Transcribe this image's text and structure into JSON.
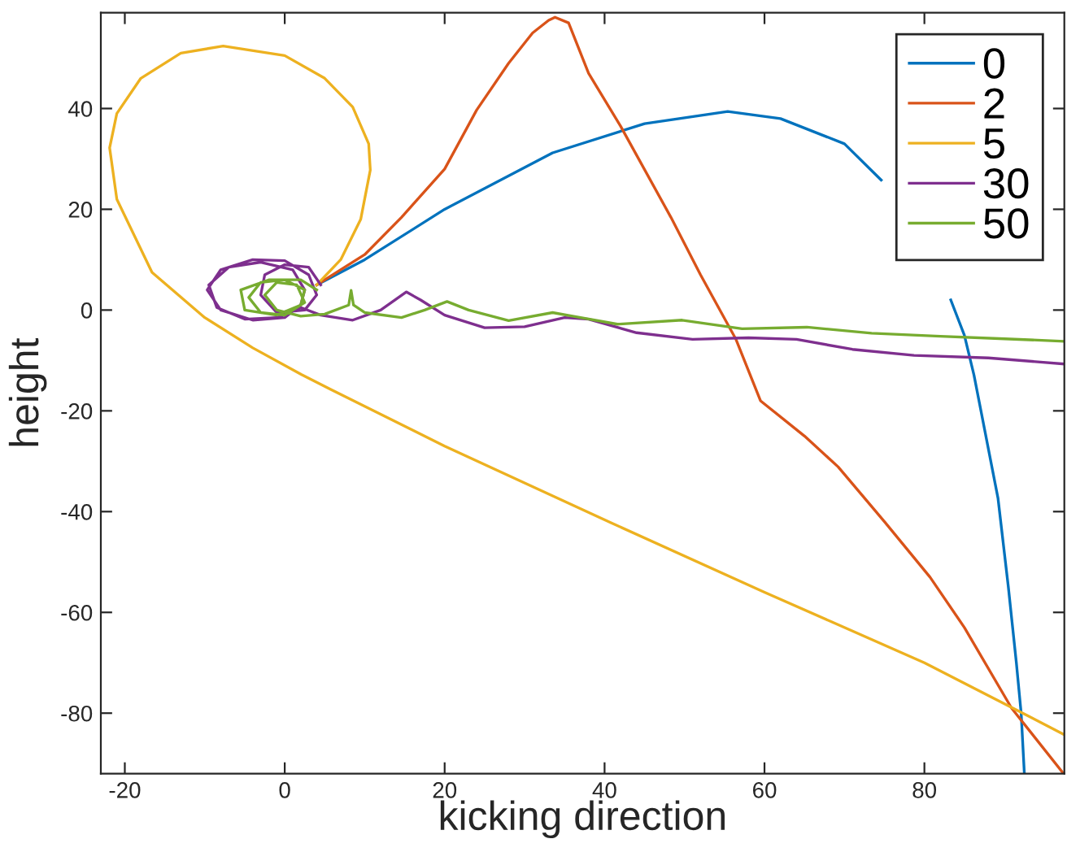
{
  "chart_data": {
    "type": "line",
    "xlabel": "kicking direction",
    "ylabel": "height",
    "xlim": [
      -23,
      97.5
    ],
    "ylim": [
      -92,
      59
    ],
    "xticks": [
      -20,
      0,
      20,
      40,
      60,
      80
    ],
    "yticks": [
      -80,
      -60,
      -40,
      -20,
      0,
      20,
      40
    ],
    "grid": false,
    "legend": "top right",
    "marker": "none",
    "line_style": "solid",
    "series": [
      {
        "name": "0",
        "color": "#0072bd",
        "x": [
          4,
          10,
          20,
          33.5,
          45,
          55.4,
          62,
          70,
          74.6,
          80,
          83.3,
          85,
          86.2,
          89.2,
          90.5,
          91.5,
          92.1,
          92.5
        ],
        "values": [
          5,
          10,
          20,
          31.2,
          37,
          39.4,
          38,
          33,
          25.8,
          null,
          2,
          -5,
          -12.9,
          -37.3,
          -55,
          -70,
          -80,
          -92
        ]
      },
      {
        "name": "2",
        "color": "#d95319",
        "x": [
          4,
          10,
          14.6,
          20,
          24,
          28,
          31,
          33,
          33.8,
          35.5,
          38,
          42,
          48.3,
          52,
          56.4,
          59.5,
          65,
          69.2,
          75,
          80.7,
          85,
          90.9,
          97.4
        ],
        "values": [
          5,
          11,
          18.4,
          28,
          39.7,
          49,
          55,
          57.5,
          58.1,
          57,
          47,
          36.5,
          18.4,
          7,
          -5.7,
          -18,
          -25,
          -31.1,
          -42,
          -53,
          -63,
          -79,
          -92
        ]
      },
      {
        "name": "5",
        "color": "#edb120",
        "x": [
          4,
          7,
          9.5,
          10.7,
          10.5,
          8.5,
          5,
          0,
          -7.7,
          -13,
          -18,
          -21,
          -21.9,
          -21,
          -16.6,
          -10,
          -4,
          2.1,
          5.7,
          20,
          40.8,
          60,
          80,
          92.3,
          97.4
        ],
        "values": [
          5,
          10,
          18,
          27.8,
          33,
          40.3,
          46,
          50.5,
          52.4,
          51,
          46,
          39,
          32.2,
          22,
          7.5,
          -1.5,
          -7.5,
          -12.8,
          -15.7,
          -27,
          -42.2,
          -56,
          -70,
          -80,
          -84.2
        ]
      },
      {
        "name": "30",
        "color": "#7e2f8e",
        "x": [
          4.5,
          3,
          0,
          -2.5,
          -3,
          -1,
          2.5,
          4,
          3,
          0,
          -4,
          -8,
          -9.7,
          -8,
          -4,
          0,
          2,
          2.5,
          1,
          -3,
          -7,
          -9.5,
          -8.5,
          -5,
          -1,
          2,
          4.5,
          8.5,
          12,
          15.2,
          17,
          20,
          25,
          30,
          35,
          38,
          44,
          51,
          58,
          64,
          71,
          78.7,
          88,
          97.5
        ],
        "values": [
          5,
          8.5,
          9,
          7,
          3,
          -0.5,
          0,
          3,
          7,
          9.8,
          10,
          8,
          4,
          0,
          -2,
          -1.5,
          1,
          4,
          8,
          9.5,
          8.5,
          5,
          0.5,
          -1.8,
          -1.5,
          0.5,
          -1,
          -2,
          0,
          3.6,
          2,
          -1,
          -3.5,
          -3.3,
          -1.5,
          -1.8,
          -4.5,
          -5.8,
          -5.5,
          -5.8,
          -7.8,
          -9,
          -9.5,
          -10.7
        ]
      },
      {
        "name": "50",
        "color": "#77ac30",
        "x": [
          4,
          2,
          -2,
          -5.5,
          -5,
          -1,
          2,
          2.5,
          0,
          -3,
          -4.5,
          -3,
          0,
          2.5,
          1.5,
          -1,
          -2.5,
          -1,
          2,
          5,
          8,
          8.3,
          8.6,
          10,
          14.6,
          17.5,
          20.3,
          23,
          28,
          33.5,
          36,
          41.6,
          49.7,
          57.2,
          65.3,
          73.4,
          82,
          90,
          97.5
        ],
        "values": [
          4,
          6,
          6,
          4,
          0,
          -1,
          1,
          4,
          6,
          5.5,
          2.5,
          -0.5,
          -1,
          1.5,
          5,
          5.5,
          3,
          0,
          -1.2,
          -0.8,
          1,
          3.9,
          1,
          -0.5,
          -1.5,
          0,
          1.7,
          0,
          -2.1,
          -0.5,
          -1.2,
          -2.8,
          -2,
          -3.7,
          -3.4,
          -4.6,
          -5.2,
          -5.7,
          -6.2
        ]
      }
    ]
  }
}
